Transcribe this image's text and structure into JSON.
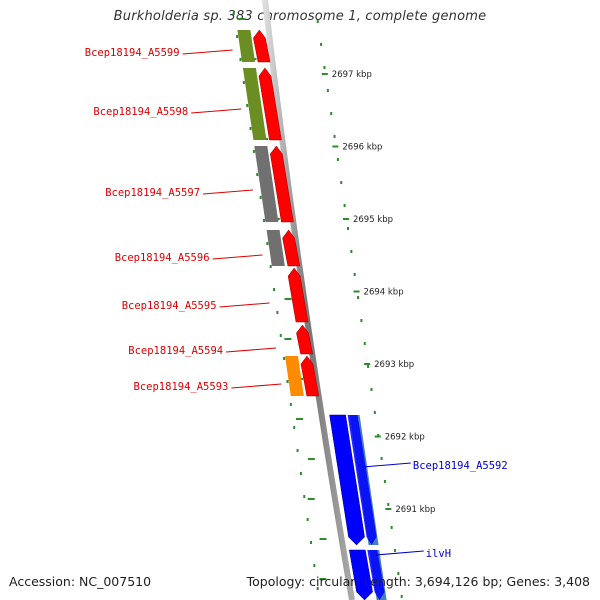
{
  "title": "Burkholderia sp. 383 chromosome 1, complete genome",
  "footer": {
    "accession": "Accession: NC_007510",
    "summary": "Topology: circular; Length: 3,694,126 bp; Genes: 3,408"
  },
  "ruler": [
    "2697 kbp",
    "2696 kbp",
    "2695 kbp",
    "2694 kbp",
    "2693 kbp",
    "2692 kbp",
    "2691 kbp"
  ],
  "genes": [
    {
      "label": "Bcep18194_A5599",
      "color": "#cc0000",
      "cog_color": "#6b8e23"
    },
    {
      "label": "Bcep18194_A5598",
      "color": "#cc0000",
      "cog_color": "#6b8e23"
    },
    {
      "label": "Bcep18194_A5597",
      "color": "#cc0000",
      "cog_color": "#707070"
    },
    {
      "label": "Bcep18194_A5596",
      "color": "#cc0000",
      "cog_color": "#707070"
    },
    {
      "label": "Bcep18194_A5595",
      "color": "#cc0000",
      "cog_color": ""
    },
    {
      "label": "Bcep18194_A5594",
      "color": "#cc0000",
      "cog_color": ""
    },
    {
      "label": "Bcep18194_A5593",
      "color": "#cc0000",
      "cog_color": "#ff8c00"
    },
    {
      "label": "Bcep18194_A5592",
      "color": "#0000cc",
      "cog_color": "#4682b4"
    },
    {
      "label": "ilvH",
      "color": "#0000cc",
      "cog_color": "#4682b4"
    }
  ],
  "colors": {
    "forward_strand": "#ff0000",
    "reverse_strand": "#0000ff",
    "tick_marks": "#2e8b2e"
  }
}
